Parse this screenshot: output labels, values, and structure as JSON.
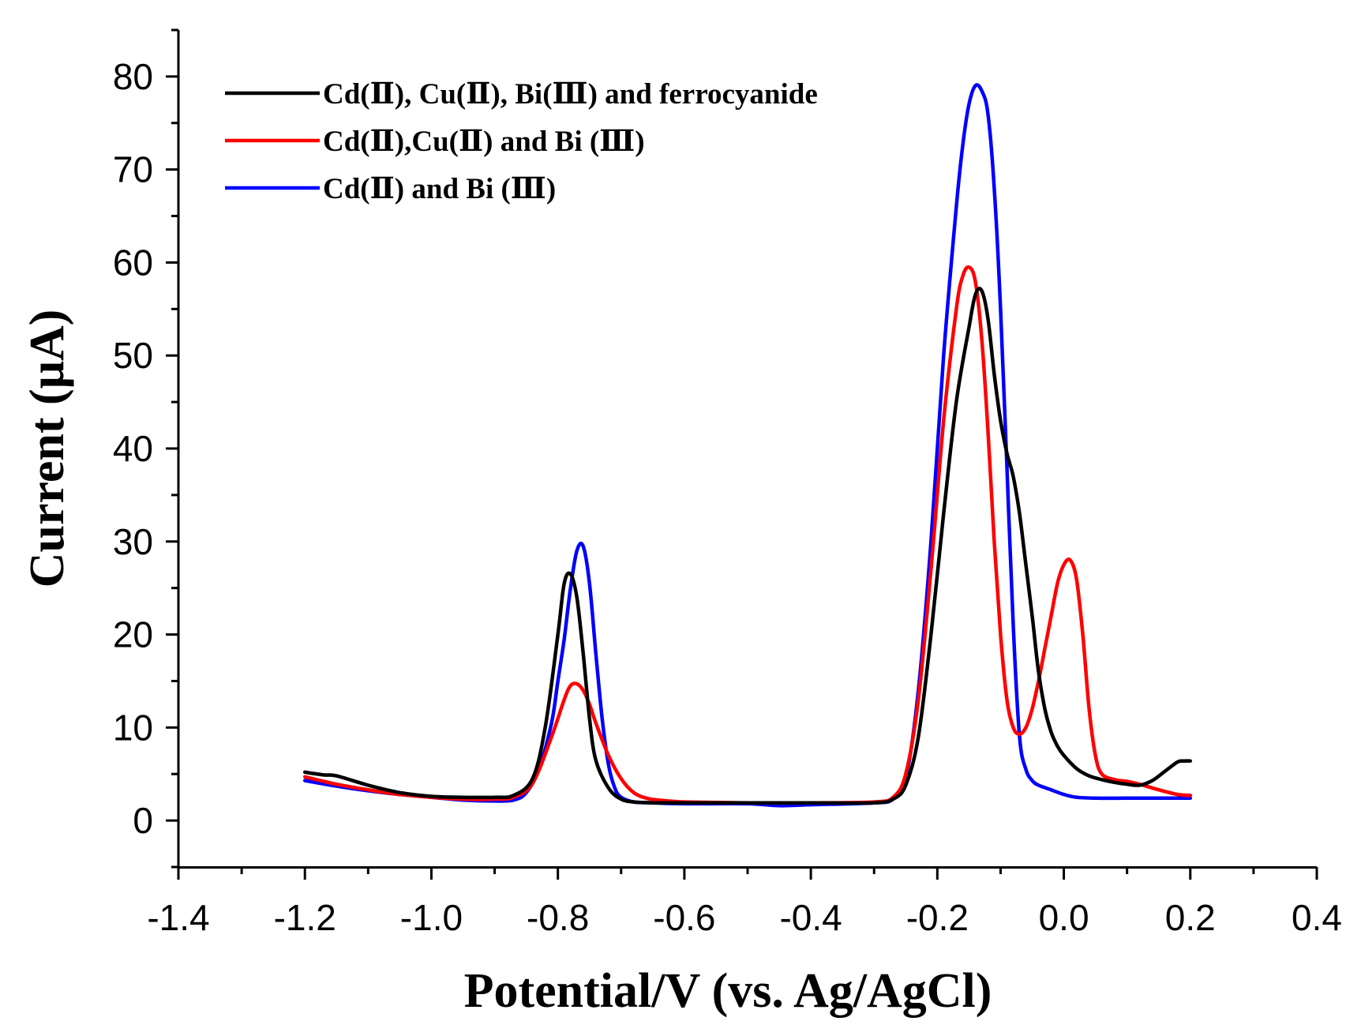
{
  "chart_data": {
    "type": "line",
    "title": "",
    "xlabel": "Potential/V (vs. Ag/AgCl)",
    "ylabel": "Current (μA)",
    "xlim": [
      -1.4,
      0.4
    ],
    "ylim": [
      -5,
      85
    ],
    "x_ticks": [
      -1.4,
      -1.2,
      -1.0,
      -0.8,
      -0.6,
      -0.4,
      -0.2,
      0.0,
      0.2,
      0.4
    ],
    "x_tick_labels": [
      "-1.4",
      "-1.2",
      "-1.0",
      "-0.8",
      "-0.6",
      "-0.4",
      "-0.2",
      "0.0",
      "0.2",
      "0.4"
    ],
    "y_ticks": [
      0,
      10,
      20,
      30,
      40,
      50,
      60,
      70,
      80
    ],
    "y_tick_labels": [
      "0",
      "10",
      "20",
      "30",
      "40",
      "50",
      "60",
      "70",
      "80"
    ],
    "grid": false,
    "legend_position": "top-left",
    "series": [
      {
        "name": "Cd(Ⅱ), Cu(Ⅱ), Bi(Ⅲ) and ferrocyanide",
        "color": "#000000",
        "x": [
          -1.2,
          -1.17,
          -1.15,
          -1.1,
          -1.05,
          -1.0,
          -0.95,
          -0.9,
          -0.87,
          -0.84,
          -0.82,
          -0.8,
          -0.79,
          -0.78,
          -0.77,
          -0.76,
          -0.75,
          -0.74,
          -0.72,
          -0.7,
          -0.68,
          -0.65,
          -0.6,
          -0.5,
          -0.4,
          -0.3,
          -0.27,
          -0.25,
          -0.23,
          -0.21,
          -0.19,
          -0.17,
          -0.15,
          -0.14,
          -0.13,
          -0.12,
          -0.11,
          -0.1,
          -0.09,
          -0.08,
          -0.07,
          -0.06,
          -0.05,
          -0.04,
          -0.03,
          -0.02,
          -0.01,
          0.0,
          0.02,
          0.04,
          0.06,
          0.08,
          0.1,
          0.12,
          0.14,
          0.16,
          0.18,
          0.19,
          0.2
        ],
        "y": [
          5.2,
          4.9,
          4.8,
          3.8,
          3.0,
          2.6,
          2.5,
          2.5,
          2.7,
          4.5,
          10.0,
          20.0,
          25.5,
          26.5,
          24.0,
          18.0,
          11.0,
          6.5,
          3.5,
          2.3,
          2.0,
          1.9,
          1.9,
          1.9,
          1.9,
          1.9,
          2.3,
          3.8,
          9.0,
          20.0,
          33.0,
          45.0,
          53.0,
          56.5,
          57.0,
          54.0,
          48.0,
          43.0,
          39.5,
          37.0,
          33.0,
          27.5,
          22.0,
          16.0,
          12.0,
          9.5,
          8.0,
          7.0,
          5.6,
          4.8,
          4.4,
          4.1,
          3.9,
          3.8,
          4.3,
          5.3,
          6.3,
          6.4,
          6.4
        ]
      },
      {
        "name": "Cd(Ⅱ),Cu(Ⅱ) and Bi (Ⅲ)",
        "color": "#ff0000",
        "x": [
          -1.2,
          -1.15,
          -1.1,
          -1.05,
          -1.0,
          -0.95,
          -0.9,
          -0.87,
          -0.84,
          -0.81,
          -0.79,
          -0.78,
          -0.77,
          -0.76,
          -0.75,
          -0.74,
          -0.72,
          -0.7,
          -0.68,
          -0.66,
          -0.64,
          -0.6,
          -0.5,
          -0.4,
          -0.3,
          -0.27,
          -0.25,
          -0.23,
          -0.21,
          -0.19,
          -0.17,
          -0.16,
          -0.15,
          -0.14,
          -0.13,
          -0.12,
          -0.11,
          -0.1,
          -0.09,
          -0.08,
          -0.07,
          -0.06,
          -0.05,
          -0.04,
          -0.03,
          -0.02,
          -0.01,
          0.0,
          0.01,
          0.02,
          0.03,
          0.04,
          0.05,
          0.06,
          0.08,
          0.1,
          0.12,
          0.15,
          0.18,
          0.2
        ],
        "y": [
          4.7,
          3.9,
          3.3,
          2.8,
          2.5,
          2.3,
          2.3,
          2.5,
          4.0,
          9.0,
          13.0,
          14.5,
          14.7,
          14.0,
          12.5,
          10.5,
          7.0,
          4.5,
          3.0,
          2.4,
          2.2,
          2.0,
          1.9,
          1.9,
          2.0,
          2.5,
          5.0,
          13.0,
          27.0,
          43.0,
          55.0,
          58.5,
          59.5,
          58.0,
          52.0,
          42.0,
          30.0,
          20.0,
          13.0,
          10.0,
          9.3,
          10.0,
          12.0,
          15.0,
          18.5,
          22.0,
          25.5,
          27.5,
          28.0,
          26.0,
          20.0,
          12.0,
          7.0,
          5.0,
          4.4,
          4.2,
          3.9,
          3.3,
          2.8,
          2.7
        ]
      },
      {
        "name": "Cd(Ⅱ) and Bi (Ⅲ)",
        "color": "#0000ff",
        "x": [
          -1.2,
          -1.15,
          -1.1,
          -1.05,
          -1.0,
          -0.95,
          -0.9,
          -0.87,
          -0.85,
          -0.83,
          -0.81,
          -0.8,
          -0.79,
          -0.78,
          -0.77,
          -0.76,
          -0.75,
          -0.74,
          -0.73,
          -0.72,
          -0.71,
          -0.7,
          -0.68,
          -0.65,
          -0.6,
          -0.5,
          -0.45,
          -0.4,
          -0.3,
          -0.27,
          -0.25,
          -0.23,
          -0.21,
          -0.19,
          -0.17,
          -0.16,
          -0.15,
          -0.14,
          -0.13,
          -0.12,
          -0.11,
          -0.1,
          -0.09,
          -0.08,
          -0.07,
          -0.06,
          -0.05,
          -0.04,
          -0.02,
          0.0,
          0.02,
          0.05,
          0.1,
          0.15,
          0.2
        ],
        "y": [
          4.3,
          3.7,
          3.2,
          2.8,
          2.5,
          2.2,
          2.1,
          2.2,
          3.0,
          5.5,
          10.5,
          15.0,
          19.5,
          25.0,
          29.0,
          29.5,
          25.5,
          18.0,
          11.0,
          6.0,
          3.5,
          2.5,
          2.0,
          1.9,
          1.8,
          1.8,
          1.6,
          1.7,
          1.9,
          2.3,
          4.5,
          14.0,
          30.0,
          50.0,
          66.0,
          72.5,
          77.0,
          79.0,
          78.5,
          76.0,
          68.0,
          55.0,
          38.0,
          21.0,
          9.0,
          5.5,
          4.3,
          3.8,
          3.3,
          2.8,
          2.5,
          2.4,
          2.4,
          2.4,
          2.4
        ]
      }
    ]
  }
}
